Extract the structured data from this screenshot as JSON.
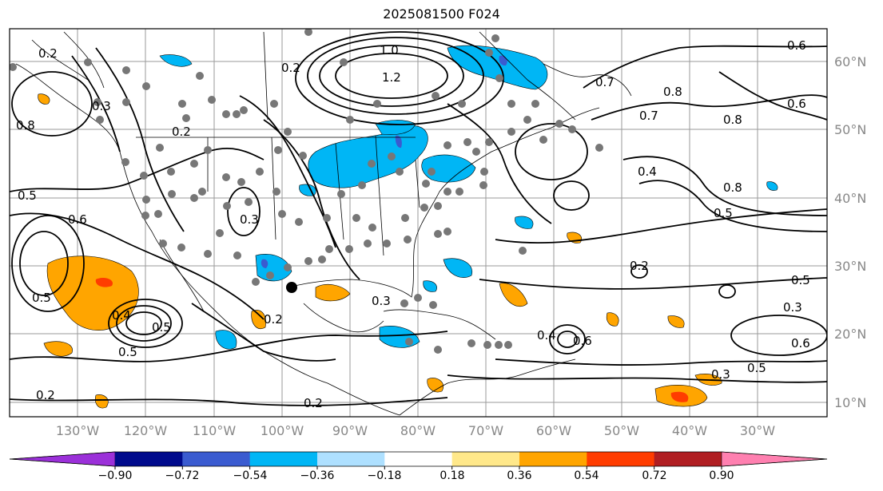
{
  "title": "2025081500 F024",
  "lat_labels": [
    "60°N",
    "50°N",
    "40°N",
    "30°N",
    "20°N",
    "10°N"
  ],
  "lon_labels": [
    "130°W",
    "120°W",
    "110°W",
    "100°W",
    "90°W",
    "80°W",
    "70°W",
    "60°W",
    "50°W",
    "40°W",
    "30°W"
  ],
  "contour_labels": [
    "0.2",
    "0.3",
    "0.5",
    "0.6",
    "0.8",
    "0.4",
    "0.5",
    "0.3",
    "0.2",
    "1.0",
    "1.2",
    "0.2",
    "0.5",
    "0.5",
    "0.6",
    "0.7",
    "0.8",
    "0.7",
    "0.6",
    "0.8",
    "0.4",
    "0.8",
    "0.5",
    "0.2",
    "0.3",
    "0.2",
    "0.4",
    "0.6",
    "0.5",
    "0.3",
    "0.6",
    "0.5",
    "0.2",
    "0.3"
  ],
  "colorbar": {
    "ticks": [
      "−0.90",
      "−0.72",
      "−0.54",
      "−0.36",
      "−0.18",
      "0.18",
      "0.36",
      "0.54",
      "0.72",
      "0.90"
    ],
    "colors": [
      "#9b30d9",
      "#000a8c",
      "#3a5bd0",
      "#00b6f5",
      "#aee0ff",
      "#ffffff",
      "#ffe88a",
      "#ffa500",
      "#ff3c00",
      "#b01e22",
      "#ff80b0"
    ]
  },
  "colors": {
    "frame": "#000000",
    "grid": "#9a9a9a",
    "dots": "#777777",
    "contour": "#000000"
  }
}
